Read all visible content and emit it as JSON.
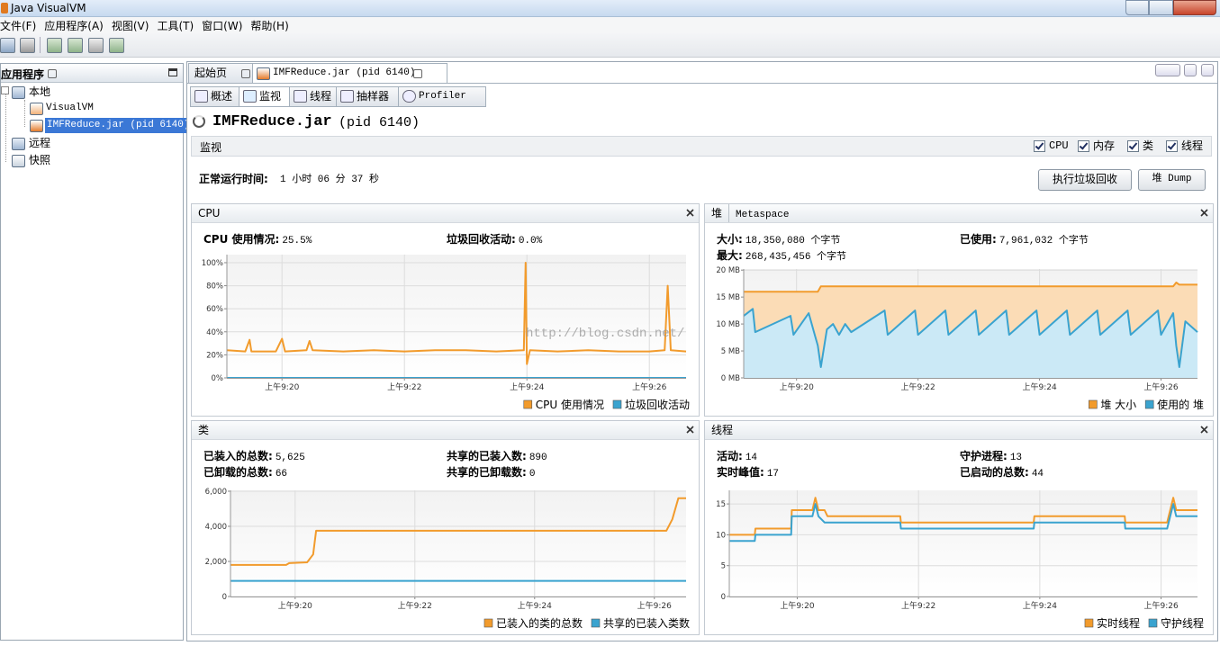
{
  "window": {
    "title": "Java VisualVM"
  },
  "menu": [
    "文件(F)",
    "应用程序(A)",
    "视图(V)",
    "工具(T)",
    "窗口(W)",
    "帮助(H)"
  ],
  "sidebar": {
    "title": "应用程序",
    "nodes": [
      {
        "label": "本地"
      },
      {
        "label": "VisualVM"
      },
      {
        "label": "IMFReduce.jar (pid 6140)"
      },
      {
        "label": "远程"
      },
      {
        "label": "快照"
      }
    ]
  },
  "tabs": [
    "起始页",
    "IMFReduce.jar (pid 6140)"
  ],
  "subtabs": [
    "概述",
    "监视",
    "线程",
    "抽样器",
    "Profiler"
  ],
  "header": {
    "title": "IMFReduce.jar",
    "pid": "(pid 6140)"
  },
  "monitor": {
    "label": "监视",
    "checks": [
      "CPU",
      "内存",
      "类",
      "线程"
    ],
    "uptime_label": "正常运行时间:",
    "uptime": "1 小时 06 分 37 秒",
    "buttons": [
      "执行垃圾回收",
      "堆 Dump"
    ]
  },
  "watermark": "http://blog.csdn.net/",
  "panels": [
    {
      "tabs": [
        "CPU"
      ],
      "stats": [
        {
          "label": "CPU 使用情况:",
          "value": "25.5%"
        },
        {
          "label": "垃圾回收活动:",
          "value": "0.0%"
        }
      ],
      "chart_data": {
        "type": "line",
        "x": [
          19.1,
          19.4,
          19.47,
          19.5,
          19.9,
          20.0,
          20.05,
          20.4,
          20.45,
          20.5,
          21.0,
          21.5,
          22.0,
          22.5,
          23.0,
          23.5,
          23.95,
          23.98,
          24.0,
          24.05,
          24.5,
          25.0,
          25.5,
          26.0,
          26.25,
          26.3,
          26.35,
          26.6
        ],
        "xlim": [
          19.1,
          26.6
        ],
        "xticks": [
          {
            "value": 20,
            "label": "上午9:20"
          },
          {
            "value": 22,
            "label": "上午9:22"
          },
          {
            "value": 24,
            "label": "上午9:24"
          },
          {
            "value": 26,
            "label": "上午9:26"
          }
        ],
        "ylim": [
          0,
          107
        ],
        "yticks": [
          {
            "value": 0,
            "label": "0%"
          },
          {
            "value": 20,
            "label": "20%"
          },
          {
            "value": 40,
            "label": "40%"
          },
          {
            "value": 60,
            "label": "60%"
          },
          {
            "value": 80,
            "label": "80%"
          },
          {
            "value": 100,
            "label": "100%"
          }
        ],
        "grid": true,
        "series": [
          {
            "name": "CPU 使用情况",
            "color": "#f29b2c",
            "values": [
              24,
              23,
              33,
              23,
              23,
              34,
              23,
              24,
              32,
              24,
              23,
              24,
              23,
              24,
              24,
              23,
              24,
              100,
              12,
              24,
              23,
              24,
              23,
              23,
              24,
              80,
              24,
              23
            ]
          },
          {
            "name": "垃圾回收活动",
            "color": "#3aa3cf",
            "values": [
              0,
              0,
              0,
              0,
              0,
              0,
              0,
              0,
              0,
              0,
              0,
              0,
              0,
              0,
              0,
              0,
              0,
              0,
              0,
              0,
              0,
              0,
              0,
              0,
              0,
              0,
              0,
              0
            ]
          }
        ]
      }
    },
    {
      "tabs": [
        "堆",
        "Metaspace"
      ],
      "stats": [
        {
          "label": "大小:",
          "value": "18,350,080 个字节"
        },
        {
          "label": "已使用:",
          "value": "7,961,032 个字节"
        },
        {
          "label": "最大:",
          "value": "268,435,456 个字节"
        }
      ],
      "chart_data": {
        "type": "area",
        "x": [
          19.13,
          19.28,
          19.32,
          19.9,
          19.95,
          20.2,
          20.3,
          20.35,
          20.4,
          20.5,
          20.6,
          20.7,
          20.8,
          20.9,
          21.45,
          21.5,
          21.95,
          22.0,
          22.45,
          22.5,
          22.95,
          23.0,
          23.45,
          23.5,
          23.95,
          24.0,
          24.45,
          24.5,
          24.95,
          25.0,
          25.45,
          25.5,
          25.95,
          26.0,
          26.2,
          26.25,
          26.3,
          26.4,
          26.6
        ],
        "xlim": [
          19.13,
          26.6
        ],
        "xticks": [
          {
            "value": 20,
            "label": "上午9:20"
          },
          {
            "value": 22,
            "label": "上午9:22"
          },
          {
            "value": 24,
            "label": "上午9:24"
          },
          {
            "value": 26,
            "label": "上午9:26"
          }
        ],
        "ylim": [
          0,
          20.2
        ],
        "yticks": [
          {
            "value": 0,
            "label": "0 MB"
          },
          {
            "value": 5,
            "label": "5 MB"
          },
          {
            "value": 10,
            "label": "10 MB"
          },
          {
            "value": 15,
            "label": "15 MB"
          },
          {
            "value": 20,
            "label": "20 MB"
          }
        ],
        "grid": true,
        "series": [
          {
            "name": "堆 大小",
            "color": "#f29b2c",
            "fill": "#fbdcb6",
            "values": [
              16,
              16,
              16,
              16,
              16,
              16,
              16,
              16,
              17,
              17,
              17,
              17,
              17,
              17,
              17,
              17,
              17,
              17,
              17,
              17,
              17,
              17,
              17,
              17,
              17,
              17,
              17,
              17,
              17,
              17,
              17,
              17,
              17,
              17,
              17,
              17.7,
              17.3,
              17.3,
              17.3
            ]
          },
          {
            "name": "使用的 堆",
            "color": "#3aa3cf",
            "fill": "#cbe9f6",
            "values": [
              11.5,
              12.8,
              8.5,
              11.5,
              8,
              12,
              8,
              6,
              2,
              9,
              10,
              8,
              10,
              8.5,
              12.5,
              8,
              12.5,
              8,
              12.5,
              8,
              12.5,
              8,
              12.5,
              8,
              12.5,
              8,
              12.5,
              8,
              12.5,
              8,
              12.5,
              8,
              12.5,
              8,
              12,
              6,
              2,
              10.5,
              8.5
            ]
          }
        ]
      }
    },
    {
      "tabs": [
        "类"
      ],
      "stats": [
        {
          "label": "已装入的总数:",
          "value": "5,625"
        },
        {
          "label": "共享的已装入数:",
          "value": "890"
        },
        {
          "label": "已卸载的总数:",
          "value": "66"
        },
        {
          "label": "共享的已卸载数:",
          "value": "0"
        }
      ],
      "chart_data": {
        "type": "line",
        "x": [
          18.92,
          19.85,
          19.9,
          20.2,
          20.3,
          20.35,
          26.2,
          26.3,
          26.4,
          26.53
        ],
        "xlim": [
          18.92,
          26.53
        ],
        "xticks": [
          {
            "value": 20,
            "label": "上午9:20"
          },
          {
            "value": 22,
            "label": "上午9:22"
          },
          {
            "value": 24,
            "label": "上午9:24"
          },
          {
            "value": 26,
            "label": "上午9:26"
          }
        ],
        "ylim": [
          0,
          6050
        ],
        "yticks": [
          0,
          {
            "value": 2000,
            "label": "2,000"
          },
          {
            "value": 4000,
            "label": "4,000"
          },
          {
            "value": 6000,
            "label": "6,000"
          }
        ],
        "grid": true,
        "series": [
          {
            "name": "已装入的类的总数",
            "color": "#f29b2c",
            "values": [
              1800,
              1800,
              1900,
              1950,
              2400,
              3750,
              3750,
              4400,
              5600,
              5600
            ]
          },
          {
            "name": "共享的已装入类数",
            "color": "#3aa3cf",
            "values": [
              890,
              890,
              890,
              890,
              890,
              890,
              890,
              890,
              890,
              890
            ]
          }
        ]
      }
    },
    {
      "tabs": [
        "线程"
      ],
      "stats": [
        {
          "label": "活动:",
          "value": "14"
        },
        {
          "label": "守护进程:",
          "value": "13"
        },
        {
          "label": "实时峰值:",
          "value": "17"
        },
        {
          "label": "已启动的总数:",
          "value": "44"
        }
      ],
      "chart_data": {
        "type": "line",
        "x": [
          18.88,
          19.3,
          19.31,
          19.9,
          19.91,
          20.25,
          20.3,
          20.35,
          20.45,
          20.5,
          21.7,
          21.71,
          23.9,
          23.91,
          25.4,
          25.41,
          26.1,
          26.2,
          26.25,
          26.3,
          26.6
        ],
        "xlim": [
          18.88,
          26.6
        ],
        "xticks": [
          {
            "value": 20,
            "label": "上午9:20"
          },
          {
            "value": 22,
            "label": "上午9:22"
          },
          {
            "value": 24,
            "label": "上午9:24"
          },
          {
            "value": 26,
            "label": "上午9:26"
          }
        ],
        "ylim": [
          0,
          17.2
        ],
        "yticks": [
          0,
          5,
          10,
          15
        ],
        "grid": true,
        "series": [
          {
            "name": "实时线程",
            "color": "#f29b2c",
            "values": [
              10,
              10,
              11,
              11,
              14,
              14,
              16,
              14,
              14,
              13,
              13,
              12,
              12,
              13,
              13,
              12,
              12,
              16,
              14,
              14,
              14
            ]
          },
          {
            "name": "守护线程",
            "color": "#3aa3cf",
            "values": [
              9,
              9,
              10,
              10,
              13,
              13,
              15,
              13,
              12,
              12,
              12,
              11,
              11,
              12,
              12,
              11,
              11,
              15,
              13,
              13,
              13
            ]
          }
        ]
      }
    }
  ]
}
